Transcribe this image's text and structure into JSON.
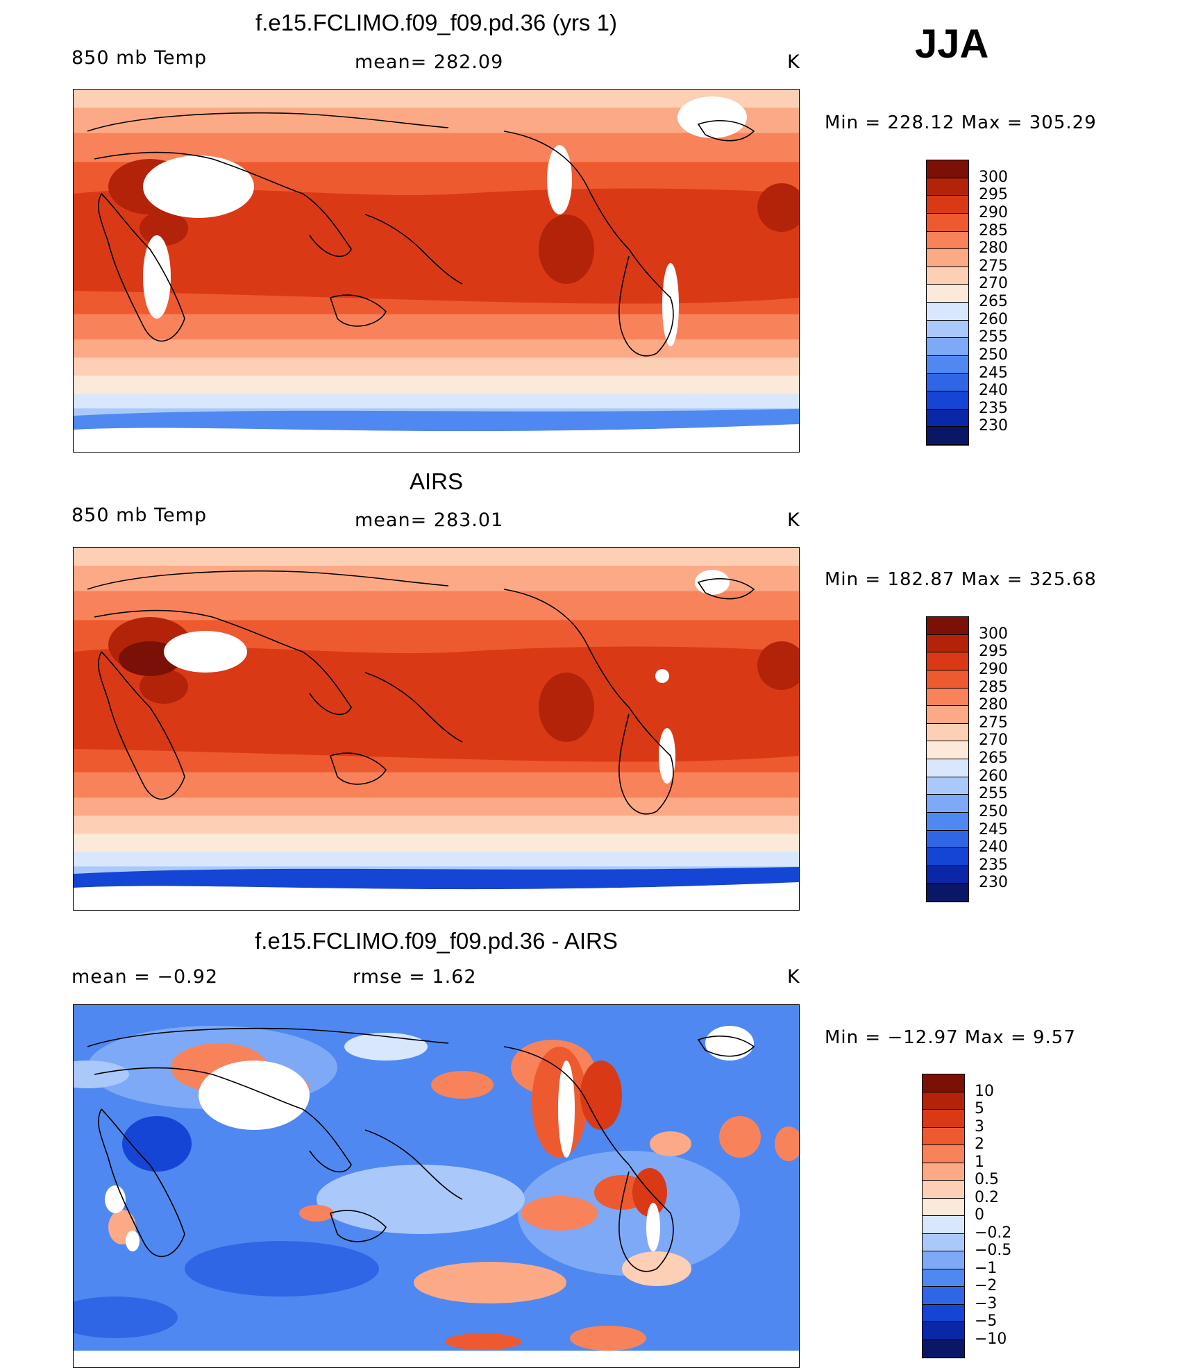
{
  "season": "JJA",
  "palettes": {
    "temp": [
      "#0a1766",
      "#0a27a8",
      "#1545d4",
      "#2f66e6",
      "#4f88f0",
      "#7ea9f6",
      "#abc8fa",
      "#d8e7fb",
      "#fde9d9",
      "#fdcfb4",
      "#fcaa86",
      "#f8835a",
      "#ee5a2f",
      "#d93a15",
      "#b32309",
      "#7b1006"
    ],
    "diff": [
      "#0a1766",
      "#0a27a8",
      "#1545d4",
      "#2f66e6",
      "#4f88f0",
      "#7ea9f6",
      "#abc8fa",
      "#d8e7fb",
      "#fde9d9",
      "#fdcfb4",
      "#fcaa86",
      "#f8835a",
      "#ee5a2f",
      "#d93a15",
      "#b32309",
      "#7b1006"
    ]
  },
  "chart_data": [
    {
      "type": "heatmap",
      "title": "f.e15.FCLIMO.f09_f09.pd.36 (yrs 1)",
      "variable": "850 mb Temp",
      "stat_label": "mean= 282.09",
      "units": "K",
      "min_max": "Min  =  228.12  Max  =  305.29",
      "min": 228.12,
      "max": 305.29,
      "colorbar_levels": [
        "300",
        "295",
        "290",
        "285",
        "280",
        "275",
        "270",
        "265",
        "260",
        "255",
        "250",
        "245",
        "240",
        "235",
        "230"
      ],
      "colorbar_values": [
        300,
        295,
        290,
        285,
        280,
        275,
        270,
        265,
        260,
        255,
        250,
        245,
        240,
        235,
        230
      ],
      "palette": "temp"
    },
    {
      "type": "heatmap",
      "title": "AIRS",
      "variable": "850 mb Temp",
      "stat_label": "mean= 283.01",
      "units": "K",
      "min_max": "Min  =  182.87  Max  =  325.68",
      "min": 182.87,
      "max": 325.68,
      "colorbar_levels": [
        "300",
        "295",
        "290",
        "285",
        "280",
        "275",
        "270",
        "265",
        "260",
        "255",
        "250",
        "245",
        "240",
        "235",
        "230"
      ],
      "colorbar_values": [
        300,
        295,
        290,
        285,
        280,
        275,
        270,
        265,
        260,
        255,
        250,
        245,
        240,
        235,
        230
      ],
      "palette": "temp"
    },
    {
      "type": "heatmap",
      "title": "f.e15.FCLIMO.f09_f09.pd.36 - AIRS",
      "variable": "mean =    −0.92",
      "stat_label": "rmse =     1.62",
      "units": "K",
      "min_max": "Min  =  −12.97  Max  =      9.57",
      "min": -12.97,
      "max": 9.57,
      "colorbar_levels": [
        "10",
        "5",
        "3",
        "2",
        "1",
        "0.5",
        "0.2",
        "0",
        "−0.2",
        "−0.5",
        "−1",
        "−2",
        "−3",
        "−5",
        "−10"
      ],
      "colorbar_values": [
        10,
        5,
        3,
        2,
        1,
        0.5,
        0.2,
        0,
        -0.2,
        -0.5,
        -1,
        -2,
        -3,
        -5,
        -10
      ],
      "palette": "diff"
    }
  ]
}
